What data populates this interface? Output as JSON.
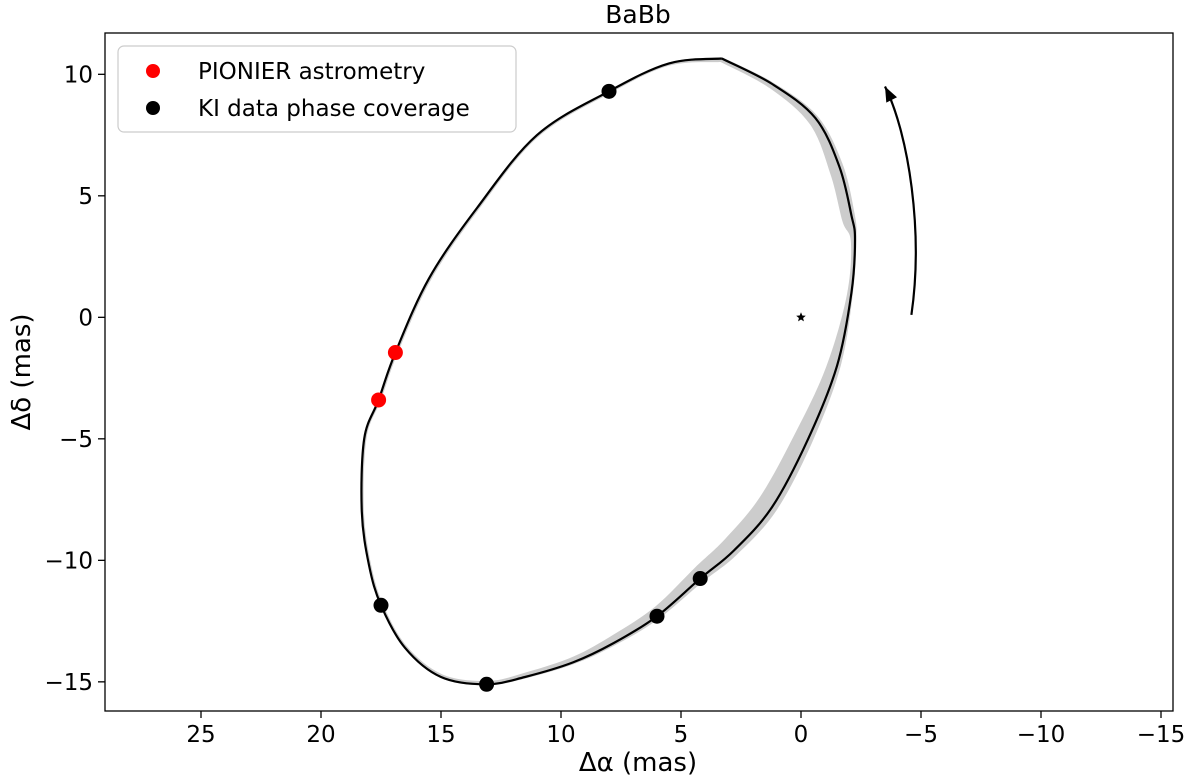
{
  "chart_data": {
    "type": "scatter",
    "title": "BaBb",
    "xlabel": "Δα (mas)",
    "ylabel": "Δδ (mas)",
    "xlim": [
      29,
      -15.5
    ],
    "ylim": [
      -16.2,
      11.7
    ],
    "x_ticks": [
      25,
      20,
      15,
      10,
      5,
      0,
      -5,
      -10,
      -15
    ],
    "x_tick_labels": [
      "25",
      "20",
      "15",
      "10",
      "5",
      "0",
      "−5",
      "−10",
      "−15"
    ],
    "y_ticks": [
      10,
      5,
      0,
      -5,
      -10,
      -15
    ],
    "y_tick_labels": [
      "10",
      "5",
      "0",
      "−5",
      "−10",
      "−15"
    ],
    "grid": false,
    "legend_position": "upper-left",
    "orbit": {
      "color": "#000000",
      "band_color": "#cccccc",
      "points": [
        [
          3.3,
          10.65
        ],
        [
          1.2,
          9.6
        ],
        [
          -0.6,
          8.2
        ],
        [
          -1.6,
          6.2
        ],
        [
          -2.1,
          4.2
        ],
        [
          -2.25,
          3.2
        ],
        [
          -2.1,
          1.0
        ],
        [
          -1.5,
          -2.0
        ],
        [
          -0.3,
          -5.0
        ],
        [
          1.2,
          -7.8
        ],
        [
          2.8,
          -9.6
        ],
        [
          4.2,
          -10.75
        ],
        [
          6.0,
          -12.3
        ],
        [
          7.8,
          -13.4
        ],
        [
          9.5,
          -14.2
        ],
        [
          11.5,
          -14.8
        ],
        [
          13.1,
          -15.1
        ],
        [
          15.0,
          -14.8
        ],
        [
          16.5,
          -13.6
        ],
        [
          17.5,
          -11.85
        ],
        [
          18.0,
          -10.2
        ],
        [
          18.3,
          -8.0
        ],
        [
          18.2,
          -5.0
        ],
        [
          17.6,
          -3.4
        ],
        [
          16.9,
          -1.45
        ],
        [
          15.5,
          1.6
        ],
        [
          13.5,
          4.5
        ],
        [
          11.0,
          7.5
        ],
        [
          8.0,
          9.3
        ],
        [
          5.5,
          10.45
        ],
        [
          3.3,
          10.65
        ]
      ],
      "band_offsets": [
        0.15,
        0.2,
        0.35,
        0.5,
        0.45,
        0.2,
        0.2,
        0.45,
        0.6,
        0.65,
        0.6,
        0.5,
        0.4,
        0.35,
        0.25,
        0.2,
        0.15,
        0.12,
        0.1,
        0.1,
        0.1,
        0.1,
        0.1,
        0.1,
        0.1,
        0.1,
        0.1,
        0.1,
        0.1,
        0.1,
        0.15
      ]
    },
    "central_star": {
      "x": 0.0,
      "y": 0.0,
      "marker": "star"
    },
    "direction_arrow": {
      "points": [
        [
          -4.6,
          0.1
        ],
        [
          -5.1,
          3.5
        ],
        [
          -4.5,
          7.5
        ],
        [
          -3.5,
          9.5
        ]
      ],
      "direction": "counter-clockwise"
    },
    "series": [
      {
        "name": "PIONIER astrometry",
        "color": "#ff0000",
        "points": [
          [
            16.9,
            -1.45
          ],
          [
            17.6,
            -3.4
          ]
        ]
      },
      {
        "name": "KI data phase coverage",
        "color": "#000000",
        "points": [
          [
            8.0,
            9.3
          ],
          [
            17.5,
            -11.85
          ],
          [
            13.1,
            -15.1
          ],
          [
            6.0,
            -12.3
          ],
          [
            4.2,
            -10.75
          ]
        ]
      }
    ]
  }
}
